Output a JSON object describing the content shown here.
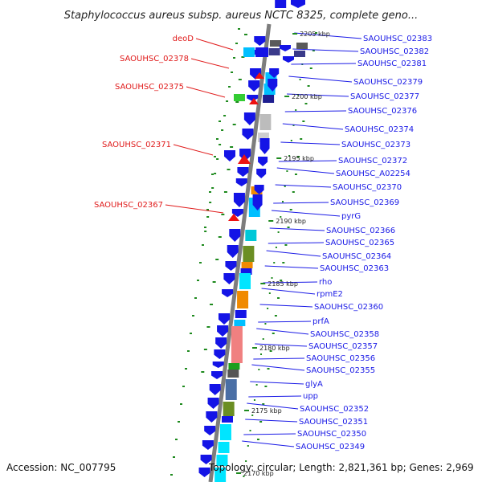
{
  "title": "Staphylococcus aureus subsp. aureus NCTC 8325, complete geno...",
  "footer": {
    "accession": "Accession: NC_007795",
    "topology": "Topology: circular; Length: 2,821,361 bp; Genes: 2,969"
  },
  "colors": {
    "backbone": "#7a7a7a",
    "blue_gene": "#1414e6",
    "red_gene": "#ee1111",
    "green_mark": "#1e8a1e",
    "blue_label": "#1a1ae6",
    "red_label": "#e01a1a"
  },
  "kbp_ticks": [
    "2205 kbp",
    "2200 kbp",
    "2195 kbp",
    "2190 kbp",
    "2185 kbp",
    "2180 kbp",
    "2175 kbp",
    "2170 kbp"
  ],
  "right_labels": [
    "SAOUHSC_02383",
    "SAOUHSC_02382",
    "SAOUHSC_02381",
    "SAOUHSC_02379",
    "SAOUHSC_02377",
    "SAOUHSC_02376",
    "SAOUHSC_02374",
    "SAOUHSC_02373",
    "SAOUHSC_02372",
    "SAOUHSC_A02254",
    "SAOUHSC_02370",
    "SAOUHSC_02369",
    "pyrG",
    "SAOUHSC_02366",
    "SAOUHSC_02365",
    "SAOUHSC_02364",
    "SAOUHSC_02363",
    "rho",
    "rpmE2",
    "SAOUHSC_02360",
    "prfA",
    "SAOUHSC_02358",
    "SAOUHSC_02357",
    "SAOUHSC_02356",
    "SAOUHSC_02355",
    "glyA",
    "upp",
    "SAOUHSC_02352",
    "SAOUHSC_02351",
    "SAOUHSC_02350",
    "SAOUHSC_02349"
  ],
  "left_labels": [
    "deoD",
    "SAOUHSC_02378",
    "SAOUHSC_02375",
    "SAOUHSC_02371",
    "SAOUHSC_02367"
  ]
}
